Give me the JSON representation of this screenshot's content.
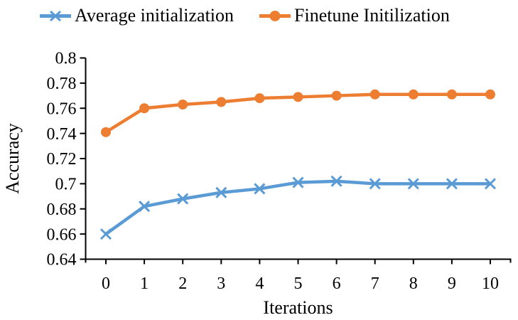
{
  "chart_data": {
    "type": "line",
    "title": "",
    "xlabel": "Iterations",
    "ylabel": "Accuracy",
    "x_tick_labels": [
      "0",
      "1",
      "2",
      "3",
      "4",
      "5",
      "6",
      "7",
      "8",
      "9",
      "10"
    ],
    "ylim": [
      0.64,
      0.8
    ],
    "y_ticks": [
      0.64,
      0.66,
      0.68,
      0.7,
      0.72,
      0.74,
      0.76,
      0.78,
      0.8
    ],
    "y_tick_labels": [
      "0.64",
      "0.66",
      "0.68",
      "0.7",
      "0.72",
      "0.74",
      "0.76",
      "0.78",
      "0.8"
    ],
    "grid": false,
    "legend_position": "top",
    "axis_color": "#000000",
    "series": [
      {
        "name": "Average initialization",
        "color": "#5B9BD5",
        "marker": "x",
        "values": [
          0.66,
          0.682,
          0.688,
          0.693,
          0.696,
          0.701,
          0.702,
          0.7,
          0.7,
          0.7,
          0.7
        ]
      },
      {
        "name": "Finetune Initilization",
        "color": "#ED7D31",
        "marker": "circle",
        "values": [
          0.741,
          0.76,
          0.763,
          0.765,
          0.768,
          0.769,
          0.77,
          0.771,
          0.771,
          0.771,
          0.771
        ]
      }
    ]
  }
}
